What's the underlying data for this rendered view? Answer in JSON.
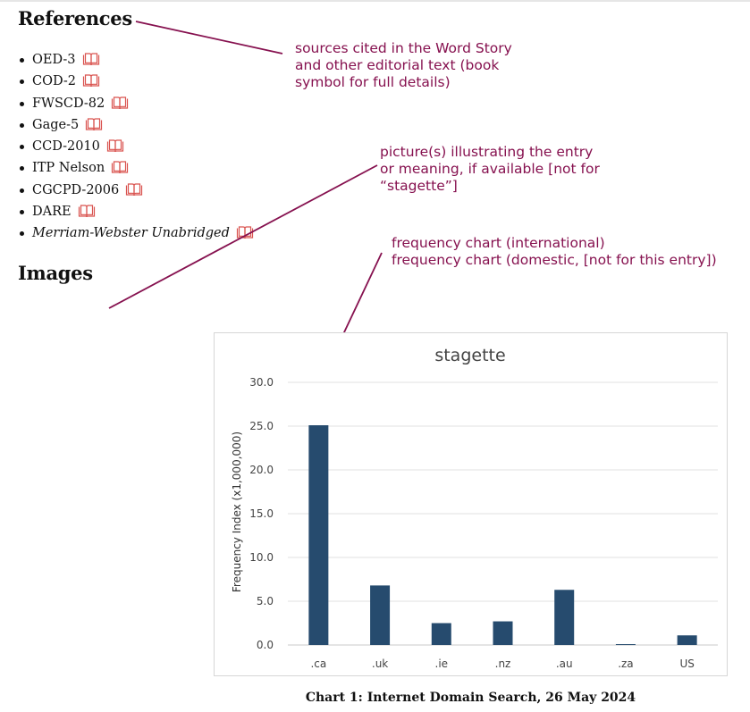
{
  "references": {
    "heading": "References",
    "items": [
      {
        "label": "OED-3",
        "italic": false
      },
      {
        "label": "COD-2",
        "italic": false
      },
      {
        "label": "FWSCD-82",
        "italic": false
      },
      {
        "label": "Gage-5",
        "italic": false
      },
      {
        "label": "CCD-2010",
        "italic": false
      },
      {
        "label": "ITP Nelson",
        "italic": false
      },
      {
        "label": "CGCPD-2006",
        "italic": false
      },
      {
        "label": "DARE",
        "italic": false
      },
      {
        "label": "Merriam-Webster Unabridged",
        "italic": true
      }
    ],
    "icon": "book-icon",
    "icon_color": "#d9534f"
  },
  "images": {
    "heading": "Images"
  },
  "annotations": {
    "color": "#86114f",
    "sources": "sources cited in the Word Story\nand other editorial text (book\nsymbol for full details)",
    "pictures": "picture(s) illustrating the entry\nor meaning, if available [not for\n“stagette”]",
    "frequency": "frequency chart (international)\nfrequency chart (domestic, [not for this entry])"
  },
  "chart_data": {
    "type": "bar",
    "title": "stagette",
    "xlabel": "",
    "ylabel": "Frequency Index (x1,000,000)",
    "categories": [
      ".ca",
      ".uk",
      ".ie",
      ".nz",
      ".au",
      ".za",
      "US"
    ],
    "values": [
      25.1,
      6.8,
      2.5,
      2.7,
      6.3,
      0.1,
      1.1
    ],
    "ylim": [
      0,
      30
    ],
    "yticks": [
      "0.0",
      "5.0",
      "10.0",
      "15.0",
      "20.0",
      "25.0",
      "30.0"
    ],
    "grid": true,
    "bar_color": "#264b6e"
  },
  "caption": "Chart 1: Internet Domain Search, 26 May 2024"
}
